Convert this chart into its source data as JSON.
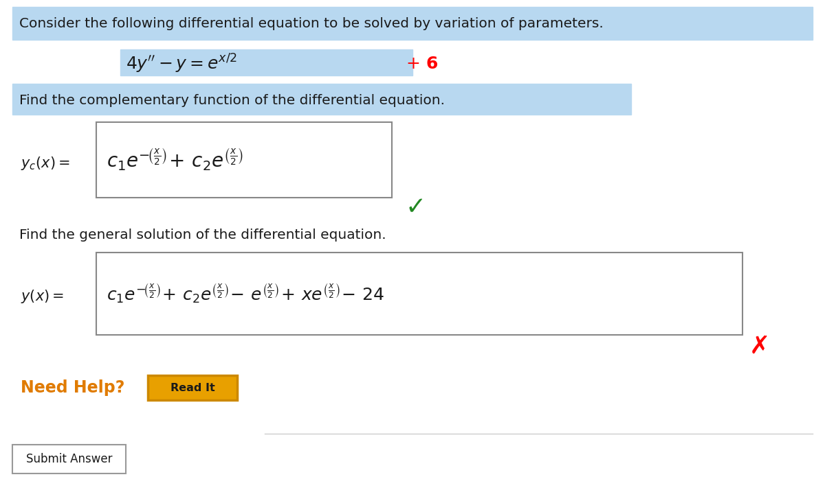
{
  "bg_color": "#ffffff",
  "white": "#ffffff",
  "highlight_blue": "#b8d8f0",
  "text_black": "#1a1a1a",
  "text_orange": "#e07b00",
  "text_red": "#cc0000",
  "text_green": "#228822",
  "border_color": "#888888",
  "button_border": "#cc8800",
  "button_bg": "#e8a000",
  "submit_border": "#999999",
  "line1": "Consider the following differential equation to be solved by variation of parameters.",
  "line3": "Find the complementary function of the differential equation.",
  "line4": "Find the general solution of the differential equation.",
  "need_help": "Need Help?",
  "read_it": "Read It",
  "submit": "Submit Answer",
  "fig_width": 12.0,
  "fig_height": 7.33,
  "dpi": 100
}
